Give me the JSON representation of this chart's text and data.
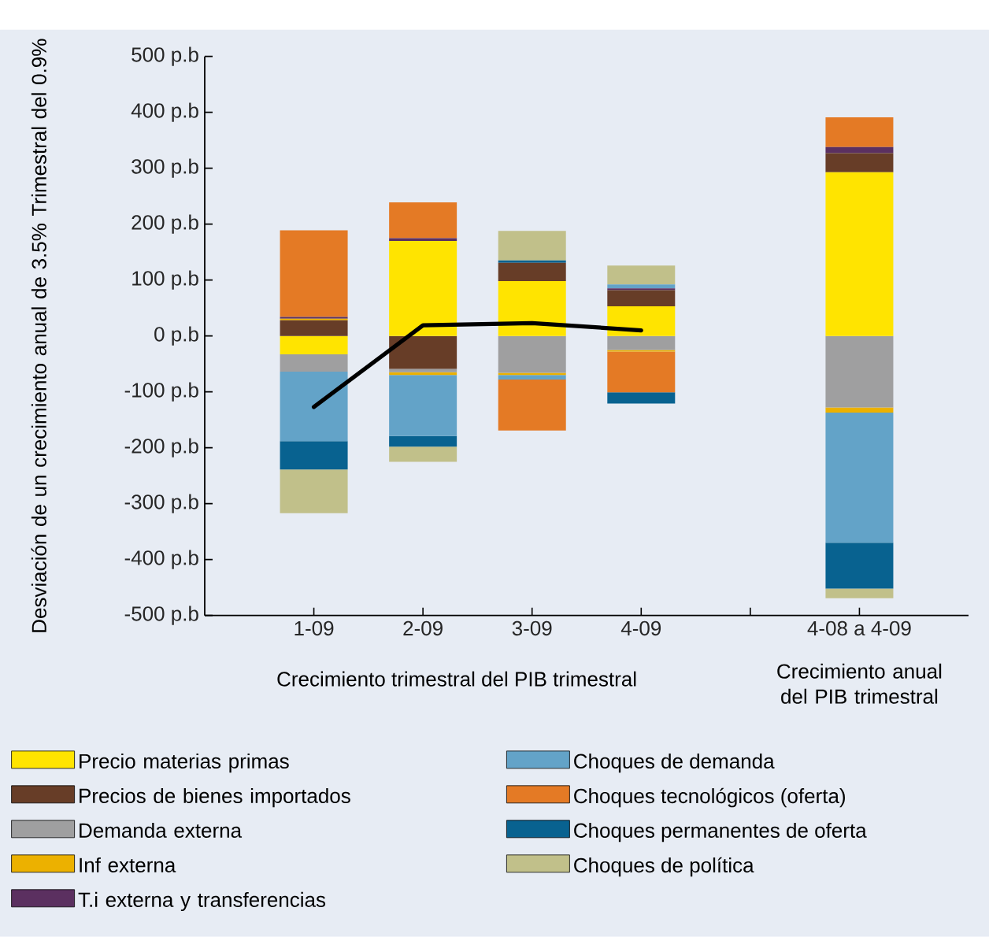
{
  "chart_data": {
    "type": "bar",
    "stacked": true,
    "legend": "bottom",
    "ylabel": "Desviación de un crecimiento anual de 3.5% Trimestral del 0.9%",
    "xlabel": "Crecimiento trimestral del PIB trimestral",
    "annotations": [
      "Crecimiento anual del PIB trimestral"
    ],
    "categories": [
      "1-09",
      "2-09",
      "3-09",
      "4-09",
      null,
      "4-08 a 4-09"
    ],
    "ylim": [
      -500,
      500
    ],
    "yticks": [
      {
        "value": -500,
        "label": "-500 p.b"
      },
      {
        "value": -400,
        "label": "-400 p.b"
      },
      {
        "value": -300,
        "label": "-300 p.b"
      },
      {
        "value": -200,
        "label": "-200 p.b"
      },
      {
        "value": -100,
        "label": "-100 p.b"
      },
      {
        "value": 0,
        "label": "0 p.b"
      },
      {
        "value": 100,
        "label": "100 p.b"
      },
      {
        "value": 200,
        "label": "200 p.b"
      },
      {
        "value": 300,
        "label": "300 p.b"
      },
      {
        "value": 400,
        "label": "400 p.b"
      },
      {
        "value": 500,
        "label": "500 p.b"
      }
    ],
    "series": [
      {
        "name": "Precio materias primas",
        "color": "#ffe400",
        "values": [
          -33,
          170,
          98,
          53,
          null,
          293
        ]
      },
      {
        "name": "Precios de bienes importados",
        "color": "#673d27",
        "values": [
          28,
          -59,
          33,
          29,
          null,
          34
        ]
      },
      {
        "name": "Demanda externa",
        "color": "#9f9fa0",
        "values": [
          -31,
          -6,
          -66,
          -25,
          null,
          -128
        ]
      },
      {
        "name": "Inf externa",
        "color": "#ecb100",
        "values": [
          3,
          -5,
          -4,
          -3,
          null,
          -9
        ]
      },
      {
        "name": "T.i externa y transferencias",
        "color": "#5b3060",
        "values": [
          3,
          5,
          null,
          3,
          null,
          11
        ]
      },
      {
        "name": "Choques de demanda",
        "color": "#63a3c8",
        "values": [
          -124,
          -109,
          -8,
          7,
          null,
          -233
        ]
      },
      {
        "name": "Choques tecnológicos (oferta)",
        "color": "#e47a25",
        "values": [
          155,
          64,
          -91,
          -73,
          null,
          53
        ]
      },
      {
        "name": "Choques permanentes de oferta",
        "color": "#086290",
        "values": [
          -51,
          -19,
          4,
          -20,
          null,
          -82
        ]
      },
      {
        "name": "Choques de política",
        "color": "#c1c08a",
        "values": [
          -78,
          -27,
          53,
          34,
          null,
          -17
        ]
      },
      {
        "type": "line",
        "color": "#000000",
        "values": [
          -127,
          19,
          23,
          10,
          null,
          null
        ]
      }
    ]
  }
}
